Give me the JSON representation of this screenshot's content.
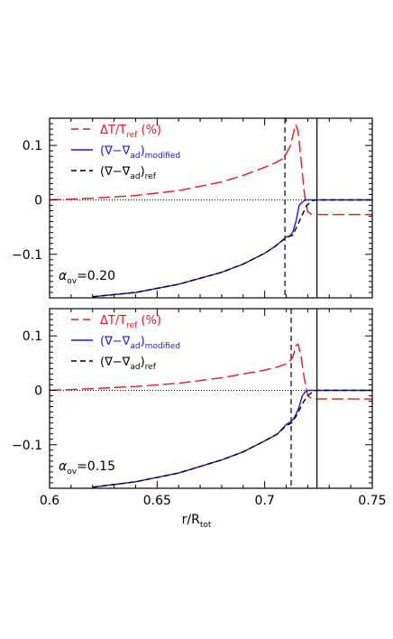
{
  "figure": {
    "xlabel_main": "r/R",
    "xlabel_sub": "tot",
    "x_ticks": [
      0.6,
      0.65,
      0.7,
      0.75
    ],
    "x_tick_labels": [
      "0.6",
      "0.65",
      "0.7",
      "0.75"
    ]
  },
  "chart_data": [
    {
      "type": "line",
      "panel": "top",
      "xlim": [
        0.6,
        0.75
      ],
      "ylim": [
        -0.18,
        0.15
      ],
      "y_ticks": [
        0.1,
        0,
        -0.1
      ],
      "y_tick_labels": [
        "0.1",
        "0",
        "−0.1"
      ],
      "annotation": {
        "main": "α",
        "sub": "ov",
        "rest": "=0.20"
      },
      "legend": [
        {
          "style": "long-dash",
          "color": "#e8191e",
          "main": "ΔT/T",
          "sub": "ref",
          "rest": " (%)"
        },
        {
          "style": "solid",
          "color": "#1c1cc8",
          "main": "(∇−∇",
          "sub": "ad",
          "rest": ")",
          "sub2": "modified"
        },
        {
          "style": "short-dash",
          "color": "#000000",
          "main": "(∇−∇",
          "sub": "ad",
          "rest": ")",
          "sub2": "ref"
        }
      ],
      "vlines": [
        {
          "x": 0.7094,
          "style": "dashed",
          "color": "#000000"
        },
        {
          "x": 0.7243,
          "style": "solid",
          "color": "#000000"
        }
      ],
      "zero_line": {
        "y": 0,
        "style": "dotted"
      },
      "series": [
        {
          "color": "#e8191e",
          "dash": "long",
          "x": [
            0.6,
            0.62,
            0.64,
            0.66,
            0.68,
            0.69,
            0.7,
            0.705,
            0.709,
            0.712,
            0.7138,
            0.7145,
            0.7155,
            0.717,
            0.7185,
            0.72,
            0.722,
            0.725,
            0.75
          ],
          "y": [
            0.0,
            0.003,
            0.008,
            0.017,
            0.033,
            0.045,
            0.06,
            0.068,
            0.077,
            0.1,
            0.13,
            0.138,
            0.125,
            0.07,
            0.01,
            -0.022,
            -0.027,
            -0.027,
            -0.027
          ]
        },
        {
          "color": "#1c1cc8",
          "dash": "solid",
          "x": [
            0.62,
            0.64,
            0.66,
            0.68,
            0.69,
            0.7,
            0.705,
            0.708,
            0.71,
            0.7115,
            0.713,
            0.7145,
            0.716,
            0.7175,
            0.719,
            0.72,
            0.7215,
            0.75
          ],
          "y": [
            -0.178,
            -0.17,
            -0.155,
            -0.133,
            -0.118,
            -0.098,
            -0.085,
            -0.075,
            -0.068,
            -0.067,
            -0.06,
            -0.04,
            -0.01,
            -0.004,
            0.0,
            0.0,
            0.0,
            0.0
          ]
        },
        {
          "color": "#000000",
          "dash": "short",
          "x": [
            0.62,
            0.64,
            0.66,
            0.68,
            0.69,
            0.7,
            0.705,
            0.71,
            0.713,
            0.716,
            0.7195,
            0.7225,
            0.724,
            0.75
          ],
          "y": [
            -0.178,
            -0.17,
            -0.155,
            -0.133,
            -0.118,
            -0.098,
            -0.085,
            -0.069,
            -0.065,
            -0.04,
            -0.01,
            -0.001,
            0.0,
            0.0
          ]
        }
      ]
    },
    {
      "type": "line",
      "panel": "bottom",
      "xlim": [
        0.6,
        0.75
      ],
      "ylim": [
        -0.18,
        0.15
      ],
      "y_ticks": [
        0.1,
        0,
        -0.1
      ],
      "y_tick_labels": [
        "0.1",
        "0",
        "−0.1"
      ],
      "annotation": {
        "main": "α",
        "sub": "ov",
        "rest": "=0.15"
      },
      "legend": [
        {
          "style": "long-dash",
          "color": "#e8191e",
          "main": "ΔT/T",
          "sub": "ref",
          "rest": " (%)"
        },
        {
          "style": "solid",
          "color": "#1c1cc8",
          "main": "(∇−∇",
          "sub": "ad",
          "rest": ")",
          "sub2": "modified"
        },
        {
          "style": "short-dash",
          "color": "#000000",
          "main": "(∇−∇",
          "sub": "ad",
          "rest": ")",
          "sub2": "ref"
        }
      ],
      "vlines": [
        {
          "x": 0.7123,
          "style": "dashed",
          "color": "#000000"
        },
        {
          "x": 0.7243,
          "style": "solid",
          "color": "#000000"
        }
      ],
      "zero_line": {
        "y": 0,
        "style": "dotted"
      },
      "series": [
        {
          "color": "#e8191e",
          "dash": "long",
          "x": [
            0.6,
            0.62,
            0.64,
            0.66,
            0.68,
            0.69,
            0.7,
            0.706,
            0.711,
            0.713,
            0.7145,
            0.7155,
            0.717,
            0.7185,
            0.72,
            0.722,
            0.75
          ],
          "y": [
            0.0,
            0.003,
            0.007,
            0.013,
            0.023,
            0.03,
            0.037,
            0.043,
            0.05,
            0.06,
            0.082,
            0.085,
            0.06,
            0.02,
            -0.01,
            -0.016,
            -0.016
          ]
        },
        {
          "color": "#1c1cc8",
          "dash": "solid",
          "x": [
            0.62,
            0.64,
            0.66,
            0.68,
            0.69,
            0.7,
            0.706,
            0.71,
            0.712,
            0.7135,
            0.715,
            0.716,
            0.7175,
            0.719,
            0.7205,
            0.75
          ],
          "y": [
            -0.178,
            -0.168,
            -0.152,
            -0.128,
            -0.113,
            -0.093,
            -0.08,
            -0.063,
            -0.058,
            -0.052,
            -0.04,
            -0.03,
            -0.01,
            -0.002,
            0.0,
            0.0
          ]
        },
        {
          "color": "#000000",
          "dash": "short",
          "x": [
            0.62,
            0.64,
            0.66,
            0.68,
            0.69,
            0.7,
            0.706,
            0.71,
            0.7125,
            0.715,
            0.7175,
            0.72,
            0.7225,
            0.724,
            0.75
          ],
          "y": [
            -0.178,
            -0.168,
            -0.152,
            -0.128,
            -0.113,
            -0.093,
            -0.08,
            -0.065,
            -0.06,
            -0.045,
            -0.025,
            -0.01,
            -0.002,
            0.0,
            0.0
          ]
        }
      ]
    }
  ]
}
